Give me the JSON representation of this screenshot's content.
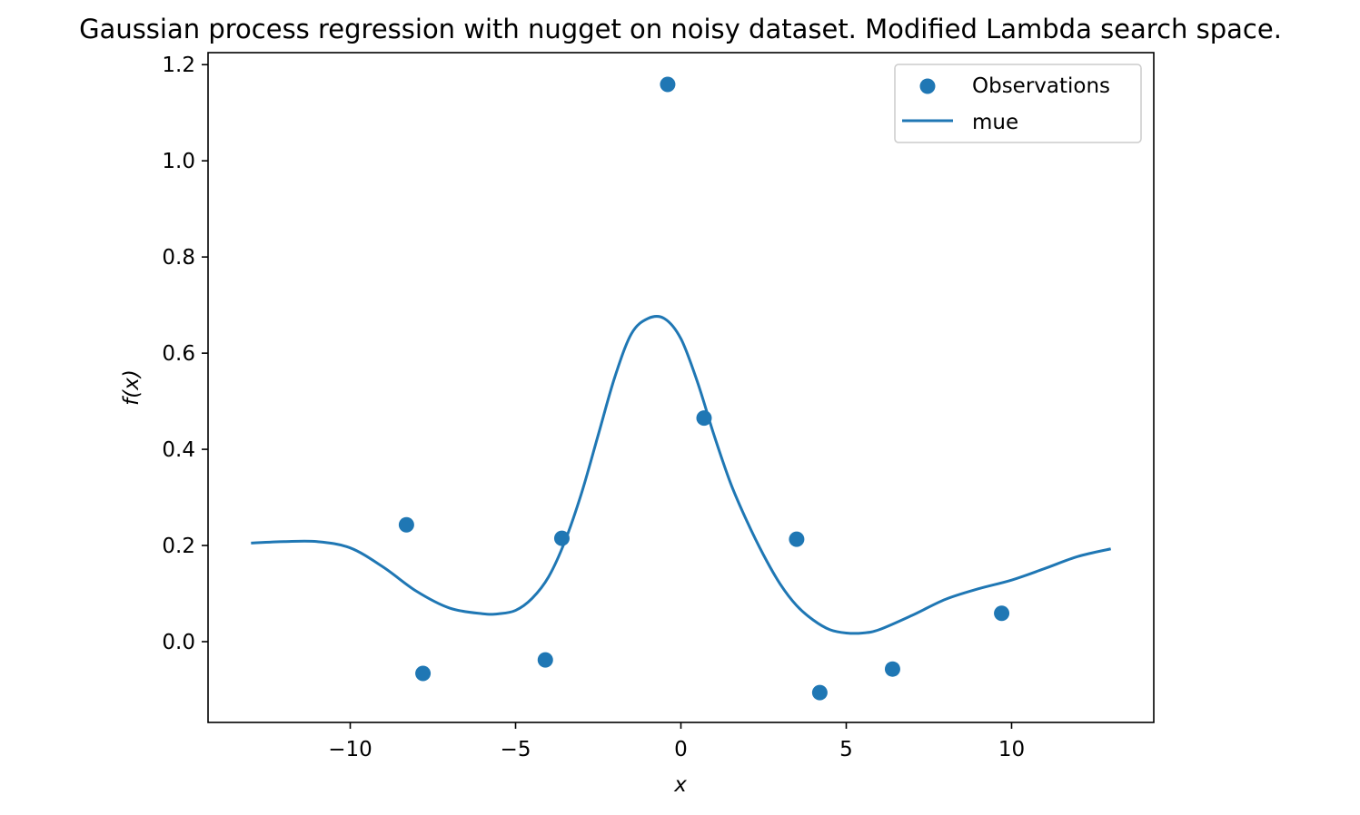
{
  "chart_data": {
    "type": "scatter",
    "title": "Gaussian process regression with nugget on noisy dataset. Modified Lambda search space.",
    "xlabel": "x",
    "ylabel": "f(x)",
    "xlim": [
      -14.3,
      14.3
    ],
    "ylim": [
      -0.168,
      1.225
    ],
    "xticks": [
      -10,
      -5,
      0,
      5,
      10
    ],
    "xtick_labels": [
      "−10",
      "−5",
      "0",
      "5",
      "10"
    ],
    "yticks": [
      0.0,
      0.2,
      0.4,
      0.6,
      0.8,
      1.0,
      1.2
    ],
    "ytick_labels": [
      "0.0",
      "0.2",
      "0.4",
      "0.6",
      "0.8",
      "1.0",
      "1.2"
    ],
    "grid": false,
    "legend_position": "top-right",
    "color": "#1f77b4",
    "series": [
      {
        "name": "Observations",
        "kind": "scatter",
        "points": [
          {
            "x": -8.3,
            "y": 0.243
          },
          {
            "x": -7.8,
            "y": -0.066
          },
          {
            "x": -4.1,
            "y": -0.038
          },
          {
            "x": -3.6,
            "y": 0.215
          },
          {
            "x": -0.4,
            "y": 1.159
          },
          {
            "x": 0.7,
            "y": 0.465
          },
          {
            "x": 3.5,
            "y": 0.213
          },
          {
            "x": 4.2,
            "y": -0.106
          },
          {
            "x": 6.4,
            "y": -0.057
          },
          {
            "x": 9.7,
            "y": 0.059
          }
        ]
      },
      {
        "name": "mue",
        "kind": "line",
        "x": [
          -13.0,
          -12.0,
          -11.0,
          -10.0,
          -9.0,
          -8.0,
          -7.0,
          -6.0,
          -5.5,
          -5.0,
          -4.5,
          -4.0,
          -3.5,
          -3.0,
          -2.5,
          -2.0,
          -1.5,
          -1.0,
          -0.5,
          0.0,
          0.5,
          1.0,
          1.5,
          2.0,
          2.5,
          3.0,
          3.5,
          4.0,
          4.5,
          5.0,
          5.5,
          6.0,
          7.0,
          8.0,
          9.0,
          10.0,
          11.0,
          12.0,
          13.0
        ],
        "y": [
          0.205,
          0.208,
          0.208,
          0.195,
          0.155,
          0.105,
          0.07,
          0.058,
          0.058,
          0.065,
          0.09,
          0.135,
          0.21,
          0.31,
          0.43,
          0.55,
          0.64,
          0.672,
          0.672,
          0.63,
          0.54,
          0.43,
          0.33,
          0.25,
          0.18,
          0.12,
          0.075,
          0.045,
          0.025,
          0.018,
          0.018,
          0.025,
          0.055,
          0.088,
          0.11,
          0.128,
          0.152,
          0.177,
          0.193
        ]
      }
    ]
  }
}
